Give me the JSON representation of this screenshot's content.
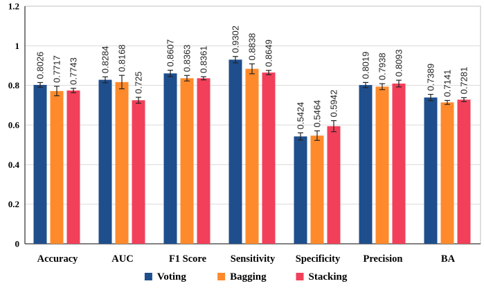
{
  "chart_data": {
    "type": "bar",
    "title": "",
    "xlabel": "",
    "ylabel": "",
    "ylim": [
      0,
      1.2
    ],
    "yticks": [
      "0",
      "0.2",
      "0.4",
      "0.6",
      "0.8",
      "1",
      "1.2"
    ],
    "grid": true,
    "legend_position": "bottom",
    "categories": [
      "Accuracy",
      "AUC",
      "F1 Score",
      "Sensitivity",
      "Specificity",
      "Precision",
      "BA"
    ],
    "series": [
      {
        "name": "Voting",
        "color": "#1f4e8c",
        "values": [
          0.8026,
          0.8284,
          0.8607,
          0.9302,
          0.5424,
          0.8019,
          0.7389
        ],
        "labels": [
          "0.8026",
          "0.8284",
          "0.8607",
          "0.9302",
          "0.5424",
          "0.8019",
          "0.7389"
        ],
        "errors": [
          0.012,
          0.015,
          0.016,
          0.016,
          0.018,
          0.013,
          0.016
        ]
      },
      {
        "name": "Bagging",
        "color": "#ff8a2b",
        "values": [
          0.7717,
          0.8168,
          0.8363,
          0.8838,
          0.5464,
          0.7938,
          0.7141
        ],
        "labels": [
          "0.7717",
          "0.8168",
          "0.8363",
          "0.8838",
          "0.5464",
          "0.7938",
          "0.7141"
        ],
        "errors": [
          0.024,
          0.034,
          0.014,
          0.025,
          0.024,
          0.015,
          0.01
        ]
      },
      {
        "name": "Stacking",
        "color": "#f2405a",
        "values": [
          0.7743,
          0.725,
          0.8361,
          0.8649,
          0.5942,
          0.8093,
          0.7281
        ],
        "labels": [
          "0.7743",
          "0.725",
          "0.8361",
          "0.8649",
          "0.5942",
          "0.8093",
          "0.7281"
        ],
        "errors": [
          0.011,
          0.015,
          0.008,
          0.011,
          0.028,
          0.017,
          0.01
        ]
      }
    ]
  }
}
